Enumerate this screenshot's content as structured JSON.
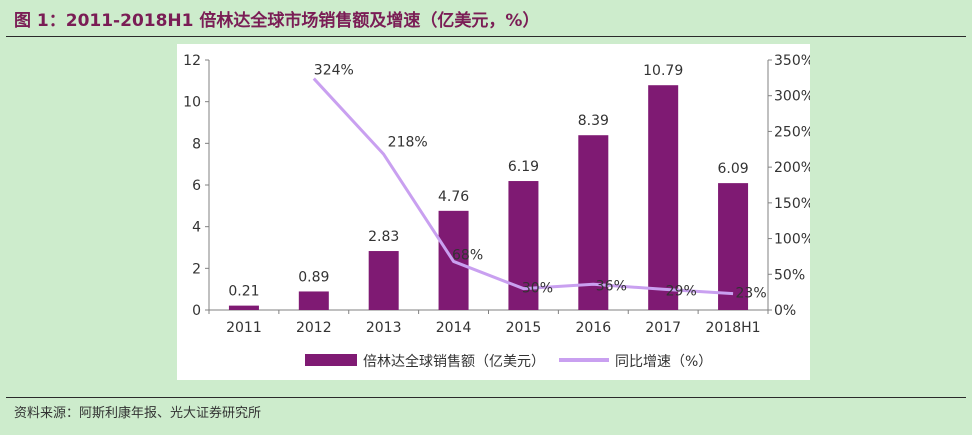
{
  "header": {
    "title": "图 1：2011-2018H1 倍林达全球市场销售额及增速（亿美元，%）"
  },
  "footer": {
    "source": "资料来源：阿斯利康年报、光大证券研究所"
  },
  "colors": {
    "page_background": "#cdeccc",
    "title_color": "#7a1d55",
    "bar_color": "#7f1a73",
    "line_color": "#c9a0f0"
  },
  "chart_data": {
    "type": "bar",
    "categories": [
      "2011",
      "2012",
      "2013",
      "2014",
      "2015",
      "2016",
      "2017",
      "2018H1"
    ],
    "series": [
      {
        "name": "倍林达全球销售额（亿美元）",
        "type": "bar",
        "axis": "left",
        "values": [
          0.21,
          0.89,
          2.83,
          4.76,
          6.19,
          8.39,
          10.79,
          6.09
        ],
        "labels": [
          "0.21",
          "0.89",
          "2.83",
          "4.76",
          "6.19",
          "8.39",
          "10.79",
          "6.09"
        ]
      },
      {
        "name": "同比增速（%）",
        "type": "line",
        "axis": "right",
        "values": [
          null,
          324,
          218,
          68,
          30,
          36,
          29,
          23
        ],
        "labels": [
          "",
          "324%",
          "218%",
          "68%",
          "30%",
          "36%",
          "29%",
          "23%"
        ]
      }
    ],
    "y_left": {
      "min": 0,
      "max": 12,
      "ticks": [
        "0",
        "2",
        "4",
        "6",
        "8",
        "10",
        "12"
      ]
    },
    "y_right": {
      "min": 0,
      "max": 350,
      "ticks": [
        "0%",
        "50%",
        "100%",
        "150%",
        "200%",
        "250%",
        "300%",
        "350%"
      ]
    },
    "grid": false,
    "legend": "bottom"
  }
}
